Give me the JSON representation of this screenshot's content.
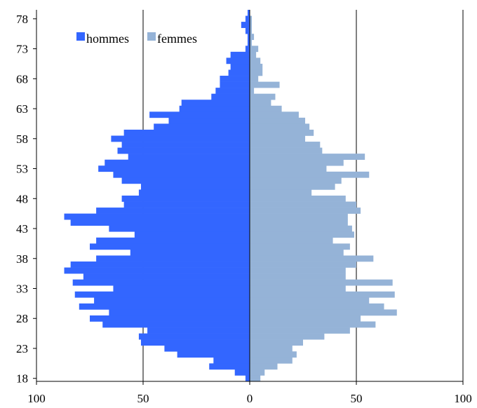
{
  "chart_data": {
    "type": "bar",
    "orientation": "horizontal",
    "title": "",
    "xlabel": "",
    "ylabel": "",
    "xlim": [
      -100,
      100
    ],
    "x_ticks": [
      {
        "value": -100,
        "label": "100"
      },
      {
        "value": -50,
        "label": "50"
      },
      {
        "value": 0,
        "label": "0"
      },
      {
        "value": 50,
        "label": "50"
      },
      {
        "value": 100,
        "label": "100"
      }
    ],
    "y_ticks": [
      {
        "value": 18,
        "label": "18"
      },
      {
        "value": 23,
        "label": "23"
      },
      {
        "value": 28,
        "label": "28"
      },
      {
        "value": 33,
        "label": "33"
      },
      {
        "value": 38,
        "label": "38"
      },
      {
        "value": 43,
        "label": "43"
      },
      {
        "value": 48,
        "label": "48"
      },
      {
        "value": 53,
        "label": "53"
      },
      {
        "value": 58,
        "label": "58"
      },
      {
        "value": 63,
        "label": "63"
      },
      {
        "value": 68,
        "label": "68"
      },
      {
        "value": 73,
        "label": "73"
      },
      {
        "value": 78,
        "label": "78"
      }
    ],
    "ages": [
      18,
      19,
      20,
      21,
      22,
      23,
      24,
      25,
      26,
      27,
      28,
      29,
      30,
      31,
      32,
      33,
      34,
      35,
      36,
      37,
      38,
      39,
      40,
      41,
      42,
      43,
      44,
      45,
      46,
      47,
      48,
      49,
      50,
      51,
      52,
      53,
      54,
      55,
      56,
      57,
      58,
      59,
      60,
      61,
      62,
      63,
      64,
      65,
      66,
      67,
      68,
      69,
      70,
      71,
      72,
      73,
      74,
      75,
      76,
      77,
      78,
      79
    ],
    "grid": "vertical",
    "legend_position": "top-left",
    "series": [
      {
        "name": "hommes",
        "color": "#3366ff",
        "values": [
          2,
          7,
          19,
          17,
          34,
          40,
          51,
          52,
          48,
          69,
          75,
          66,
          80,
          73,
          82,
          64,
          83,
          78,
          87,
          84,
          72,
          56,
          75,
          72,
          54,
          66,
          84,
          87,
          72,
          59,
          60,
          52,
          51,
          60,
          64,
          71,
          68,
          57,
          62,
          60,
          65,
          59,
          45,
          38,
          47,
          33,
          32,
          18,
          16,
          14,
          14,
          10,
          9,
          11,
          9,
          2,
          1,
          1,
          2,
          4,
          2,
          1
        ]
      },
      {
        "name": "femmes",
        "color": "#95b3d7",
        "values": [
          5,
          7,
          13,
          20,
          22,
          20,
          25,
          35,
          47,
          59,
          52,
          69,
          63,
          56,
          68,
          45,
          67,
          45,
          45,
          50,
          58,
          44,
          47,
          39,
          49,
          48,
          46,
          46,
          52,
          50,
          45,
          29,
          40,
          43,
          56,
          36,
          44,
          54,
          34,
          33,
          26,
          30,
          28,
          26,
          23,
          15,
          10,
          12,
          2,
          14,
          4,
          6,
          6,
          5,
          3,
          4,
          1,
          2,
          1,
          1,
          1,
          0
        ]
      }
    ]
  }
}
